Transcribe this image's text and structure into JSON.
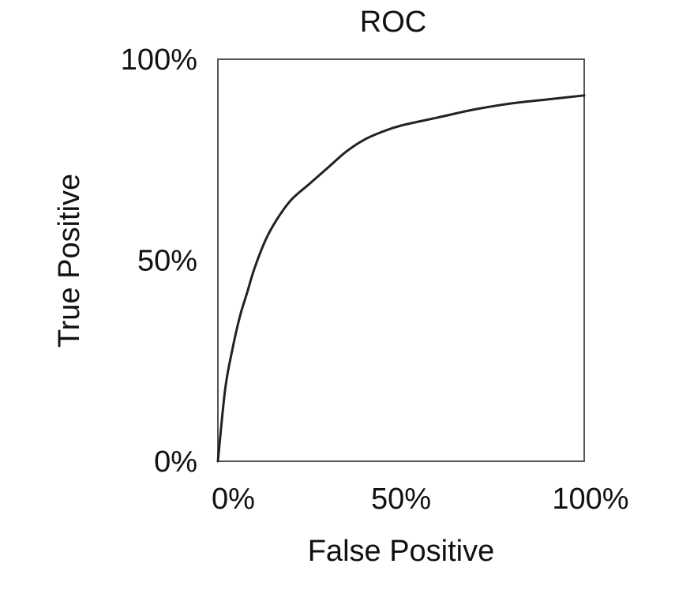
{
  "chart_data": {
    "type": "line",
    "title": "ROC",
    "xlabel": "False Positive",
    "ylabel": "True Positive",
    "xlim": [
      0,
      100
    ],
    "ylim": [
      0,
      100
    ],
    "x_ticks": [
      "0%",
      "50%",
      "100%"
    ],
    "y_ticks": [
      "0%",
      "50%",
      "100%"
    ],
    "x_tick_values": [
      0,
      50,
      100
    ],
    "y_tick_values": [
      0,
      50,
      100
    ],
    "grid": false,
    "series": [
      {
        "x": [
          0,
          2,
          4,
          6,
          8,
          10,
          13,
          16,
          20,
          25,
          30,
          35,
          40,
          45,
          50,
          60,
          70,
          80,
          90,
          100
        ],
        "y": [
          0,
          18,
          28,
          36,
          42,
          48,
          55,
          60,
          65,
          69,
          73,
          77,
          80,
          82,
          83.5,
          85.5,
          87.5,
          89,
          90,
          91
        ],
        "color": "#222222"
      }
    ]
  }
}
